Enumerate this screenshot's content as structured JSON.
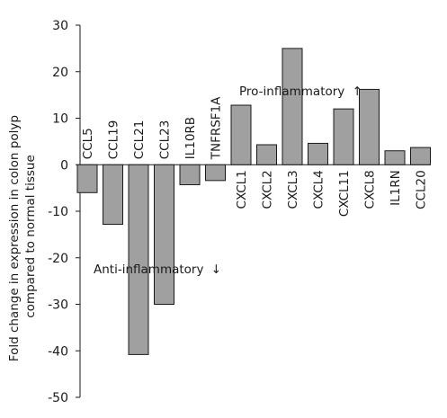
{
  "chart_data": {
    "type": "bar",
    "title": "",
    "xlabel": "",
    "ylabel": "Fold change in expression in colon polyp compared to normal tissue",
    "ylabel_lines": [
      "Fold change in expression in colon polyp",
      "compared to normal tissue"
    ],
    "ylim": [
      -50,
      30
    ],
    "yticks": [
      30,
      20,
      10,
      0,
      -10,
      -20,
      -30,
      -40,
      -50
    ],
    "grid": false,
    "categories": [
      "CCL5",
      "CCL19",
      "CCL21",
      "CCL23",
      "IL10RB",
      "TNFRSF1A",
      "CXCL1",
      "CXCL2",
      "CXCL3",
      "CXCL4",
      "CXCL11",
      "CXCL8",
      "IL1RN",
      "CCL20"
    ],
    "values": [
      -6,
      -12.8,
      -40.8,
      -30,
      -4.3,
      -3.4,
      12.8,
      4.3,
      25,
      4.6,
      12,
      16.2,
      3,
      3.7
    ],
    "annotations": [
      {
        "text": "Pro-inflammatory",
        "arrow": "↑"
      },
      {
        "text": "Anti-inflammatory",
        "arrow": "↓"
      }
    ],
    "colors": {
      "bar": "#a0a0a0",
      "outline": "#1a1a1a"
    }
  }
}
